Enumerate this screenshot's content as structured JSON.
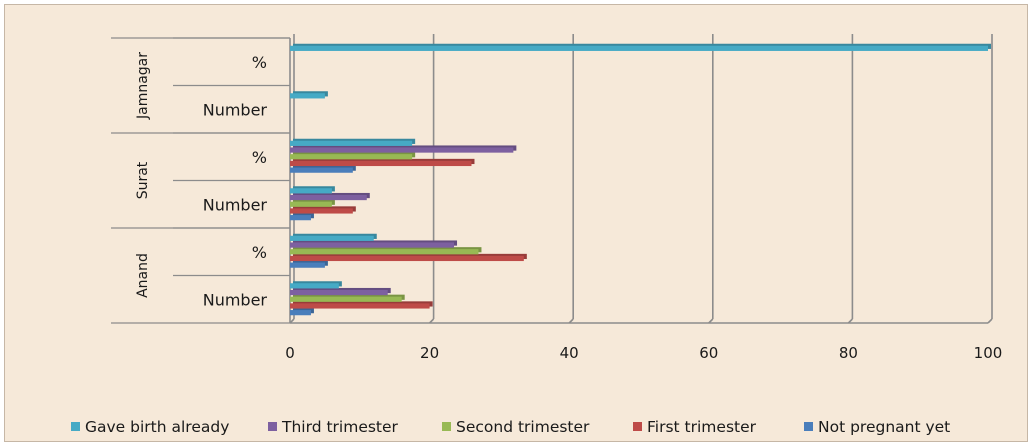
{
  "chart_data": {
    "type": "bar",
    "orientation": "horizontal",
    "groups": [
      {
        "name": "Anand",
        "categories": [
          "Number",
          "%"
        ]
      },
      {
        "name": "Surat",
        "categories": [
          "Number",
          "%"
        ]
      },
      {
        "name": "Jamnagar",
        "categories": [
          "Number",
          "%"
        ]
      }
    ],
    "series": [
      {
        "name": "Not pregnant yet",
        "color": "#4a7ebb",
        "values": [
          3,
          5,
          3,
          9,
          0,
          0
        ]
      },
      {
        "name": "First trimester",
        "color": "#be4b48",
        "values": [
          20,
          33.5,
          9,
          26,
          0,
          0
        ]
      },
      {
        "name": "Second trimester",
        "color": "#98b954",
        "values": [
          16,
          27,
          6,
          17.5,
          0,
          0
        ]
      },
      {
        "name": "Third trimester",
        "color": "#7d60a0",
        "values": [
          14,
          23.5,
          11,
          32,
          0,
          0
        ]
      },
      {
        "name": "Gave birth already",
        "color": "#46aac5",
        "values": [
          7,
          12,
          6,
          17.5,
          5,
          100
        ]
      }
    ],
    "xlim": [
      0,
      100
    ],
    "xticks": [
      "0",
      "20",
      "40",
      "60",
      "80",
      "100"
    ],
    "grid": true,
    "legend_position": "bottom"
  }
}
